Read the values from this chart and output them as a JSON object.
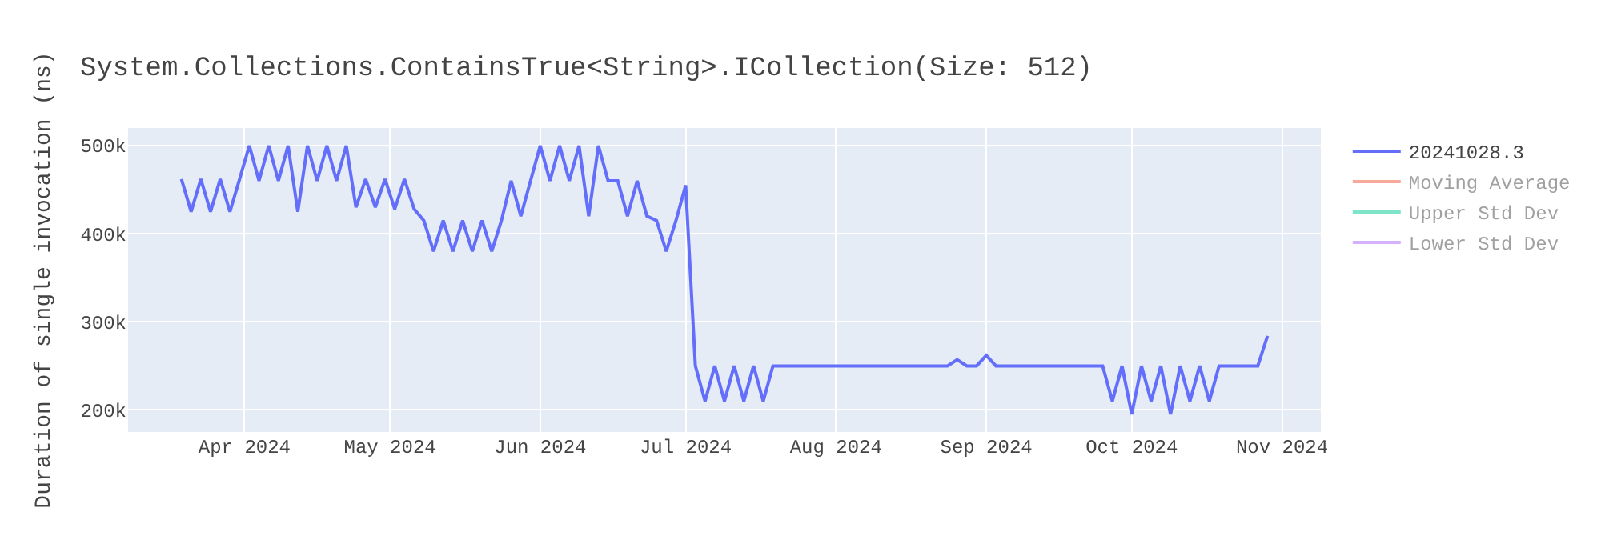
{
  "chart_data": {
    "type": "line",
    "title": "System.Collections.ContainsTrue<String>.ICollection(Size: 512)",
    "ylabel": "Duration of single invocation (ns)",
    "x": [
      "2024-03-19",
      "2024-03-21",
      "2024-03-23",
      "2024-03-25",
      "2024-03-27",
      "2024-03-29",
      "2024-03-31",
      "2024-04-02",
      "2024-04-04",
      "2024-04-06",
      "2024-04-08",
      "2024-04-10",
      "2024-04-12",
      "2024-04-14",
      "2024-04-16",
      "2024-04-18",
      "2024-04-20",
      "2024-04-22",
      "2024-04-24",
      "2024-04-26",
      "2024-04-28",
      "2024-04-30",
      "2024-05-02",
      "2024-05-04",
      "2024-05-06",
      "2024-05-08",
      "2024-05-10",
      "2024-05-12",
      "2024-05-14",
      "2024-05-16",
      "2024-05-18",
      "2024-05-20",
      "2024-05-22",
      "2024-05-24",
      "2024-05-26",
      "2024-05-28",
      "2024-05-30",
      "2024-06-01",
      "2024-06-03",
      "2024-06-05",
      "2024-06-07",
      "2024-06-09",
      "2024-06-11",
      "2024-06-13",
      "2024-06-15",
      "2024-06-17",
      "2024-06-19",
      "2024-06-21",
      "2024-06-23",
      "2024-06-25",
      "2024-06-27",
      "2024-06-29",
      "2024-07-01",
      "2024-07-03",
      "2024-07-05",
      "2024-07-07",
      "2024-07-09",
      "2024-07-11",
      "2024-07-13",
      "2024-07-15",
      "2024-07-17",
      "2024-07-19",
      "2024-07-21",
      "2024-07-23",
      "2024-07-25",
      "2024-07-27",
      "2024-07-29",
      "2024-07-31",
      "2024-08-02",
      "2024-08-04",
      "2024-08-06",
      "2024-08-08",
      "2024-08-10",
      "2024-08-12",
      "2024-08-14",
      "2024-08-16",
      "2024-08-18",
      "2024-08-20",
      "2024-08-22",
      "2024-08-24",
      "2024-08-26",
      "2024-08-28",
      "2024-08-30",
      "2024-09-01",
      "2024-09-03",
      "2024-09-05",
      "2024-09-07",
      "2024-09-09",
      "2024-09-11",
      "2024-09-13",
      "2024-09-15",
      "2024-09-17",
      "2024-09-19",
      "2024-09-21",
      "2024-09-23",
      "2024-09-25",
      "2024-09-27",
      "2024-09-29",
      "2024-10-01",
      "2024-10-03",
      "2024-10-05",
      "2024-10-07",
      "2024-10-09",
      "2024-10-11",
      "2024-10-13",
      "2024-10-15",
      "2024-10-17",
      "2024-10-19",
      "2024-10-21",
      "2024-10-23",
      "2024-10-25",
      "2024-10-27",
      "2024-10-29"
    ],
    "series": [
      {
        "name": "20241028.3",
        "color": "#636efa",
        "values": [
          462000,
          425000,
          462000,
          425000,
          462000,
          425000,
          462000,
          500000,
          460000,
          500000,
          460000,
          500000,
          425000,
          500000,
          460000,
          500000,
          460000,
          500000,
          430000,
          462000,
          430000,
          462000,
          428000,
          462000,
          428000,
          415000,
          380000,
          415000,
          380000,
          415000,
          380000,
          415000,
          380000,
          415000,
          460000,
          420000,
          460000,
          500000,
          460000,
          500000,
          460000,
          500000,
          420000,
          500000,
          460000,
          460000,
          420000,
          460000,
          420000,
          415000,
          380000,
          415000,
          455000,
          250000,
          210000,
          250000,
          210000,
          250000,
          210000,
          250000,
          210000,
          250000,
          250000,
          250000,
          250000,
          250000,
          250000,
          250000,
          250000,
          250000,
          250000,
          250000,
          250000,
          250000,
          250000,
          250000,
          250000,
          250000,
          250000,
          250000,
          257000,
          250000,
          250000,
          262000,
          250000,
          250000,
          250000,
          250000,
          250000,
          250000,
          250000,
          250000,
          250000,
          250000,
          250000,
          250000,
          210000,
          250000,
          195000,
          250000,
          210000,
          250000,
          195000,
          250000,
          210000,
          250000,
          210000,
          250000,
          250000,
          250000,
          250000,
          250000,
          284000
        ]
      },
      {
        "name": "Moving Average",
        "color": "#ef553b",
        "values": [
          null,
          null,
          null,
          null,
          null,
          null,
          null,
          null,
          null,
          null,
          null,
          null,
          null,
          null,
          null,
          null,
          null,
          null,
          null,
          null,
          null,
          null,
          null,
          null,
          null,
          null,
          null,
          null,
          null,
          null,
          null,
          null,
          null,
          null,
          null,
          null,
          null,
          null,
          null,
          null,
          null,
          null,
          null,
          null,
          null,
          null,
          null,
          null,
          null,
          null,
          null,
          null,
          null,
          null,
          null,
          null,
          null,
          null,
          null,
          null,
          null,
          null,
          null,
          null,
          null,
          null,
          null,
          null,
          null,
          null,
          null,
          null,
          null,
          null,
          null,
          null,
          null,
          null,
          null,
          null,
          null,
          null,
          null,
          null,
          null,
          null,
          null,
          null,
          null,
          null,
          null,
          null,
          null,
          null,
          null,
          null,
          null,
          null,
          null,
          null,
          null,
          null,
          null,
          null,
          null,
          null,
          null,
          null,
          null,
          null,
          null,
          null,
          null
        ]
      },
      {
        "name": "Upper Std Dev",
        "color": "#00cc96",
        "values": [
          null,
          null,
          null,
          null,
          null,
          null,
          null,
          null,
          null,
          null,
          null,
          null,
          null,
          null,
          null,
          null,
          null,
          null,
          null,
          null,
          null,
          null,
          null,
          null,
          null,
          null,
          null,
          null,
          null,
          null,
          null,
          null,
          null,
          null,
          null,
          null,
          null,
          null,
          null,
          null,
          null,
          null,
          null,
          null,
          null,
          null,
          null,
          null,
          null,
          null,
          null,
          null,
          null,
          null,
          null,
          null,
          null,
          null,
          null,
          null,
          null,
          null,
          null,
          null,
          null,
          null,
          null,
          null,
          null,
          null,
          null,
          null,
          null,
          null,
          null,
          null,
          null,
          null,
          null,
          null,
          null,
          null,
          null,
          null,
          null,
          null,
          null,
          null,
          null,
          null,
          null,
          null,
          null,
          null,
          null,
          null,
          null,
          null,
          null,
          null,
          null,
          null,
          null,
          null,
          null,
          null,
          null,
          null,
          null,
          null,
          null,
          null,
          null
        ]
      },
      {
        "name": "Lower Std Dev",
        "color": "#ab63fa",
        "values": [
          null,
          null,
          null,
          null,
          null,
          null,
          null,
          null,
          null,
          null,
          null,
          null,
          null,
          null,
          null,
          null,
          null,
          null,
          null,
          null,
          null,
          null,
          null,
          null,
          null,
          null,
          null,
          null,
          null,
          null,
          null,
          null,
          null,
          null,
          null,
          null,
          null,
          null,
          null,
          null,
          null,
          null,
          null,
          null,
          null,
          null,
          null,
          null,
          null,
          null,
          null,
          null,
          null,
          null,
          null,
          null,
          null,
          null,
          null,
          null,
          null,
          null,
          null,
          null,
          null,
          null,
          null,
          null,
          null,
          null,
          null,
          null,
          null,
          null,
          null,
          null,
          null,
          null,
          null,
          null,
          null,
          null,
          null,
          null,
          null,
          null,
          null,
          null,
          null,
          null,
          null,
          null,
          null,
          null,
          null,
          null,
          null,
          null,
          null,
          null,
          null,
          null,
          null,
          null,
          null,
          null,
          null,
          null,
          null,
          null,
          null,
          null,
          null
        ]
      }
    ],
    "xlim": [
      "2024-03-08",
      "2024-11-09"
    ],
    "xticks": [
      {
        "value": "2024-04-01",
        "label": "Apr 2024"
      },
      {
        "value": "2024-05-01",
        "label": "May 2024"
      },
      {
        "value": "2024-06-01",
        "label": "Jun 2024"
      },
      {
        "value": "2024-07-01",
        "label": "Jul 2024"
      },
      {
        "value": "2024-08-01",
        "label": "Aug 2024"
      },
      {
        "value": "2024-09-01",
        "label": "Sep 2024"
      },
      {
        "value": "2024-10-01",
        "label": "Oct 2024"
      },
      {
        "value": "2024-11-01",
        "label": "Nov 2024"
      }
    ],
    "ylim": [
      175000,
      520000
    ],
    "yticks": [
      {
        "value": 200000,
        "label": "200k"
      },
      {
        "value": 300000,
        "label": "300k"
      },
      {
        "value": 400000,
        "label": "400k"
      },
      {
        "value": 500000,
        "label": "500k"
      }
    ],
    "grid": true,
    "legend": "top right",
    "marker": "none",
    "line_style": "solid"
  }
}
